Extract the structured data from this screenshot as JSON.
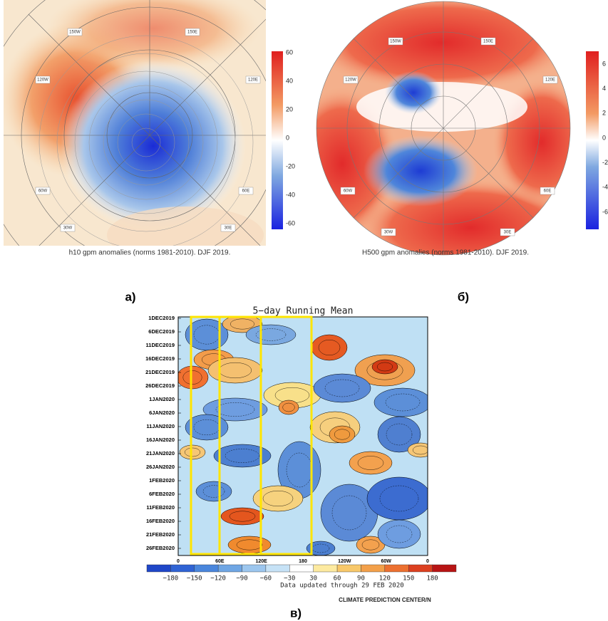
{
  "panel_a": {
    "caption": "h10 gpm anomalies (norms 1981-2010). DJF 2019.",
    "label": "а)",
    "colorbar_ticks": [
      "60",
      "40",
      "20",
      "0",
      "-20",
      "-40",
      "-60"
    ],
    "map_labels": [
      "150W",
      "150E",
      "120W",
      "120E",
      "60W",
      "60E",
      "30W",
      "30E"
    ]
  },
  "panel_b": {
    "caption": "H500 gpm anomalies (norms 1981-2010). DJF 2019.",
    "label": "б)",
    "colorbar_ticks": [
      "6",
      "4",
      "2",
      "0",
      "-2",
      "-4",
      "-6"
    ],
    "map_labels": [
      "150W",
      "150E",
      "120W",
      "120E",
      "60W",
      "60E",
      "30W",
      "30E"
    ]
  },
  "panel_c": {
    "title": "5−day Running Mean",
    "label": "в)",
    "dates": [
      "1DEC2019",
      "6DEC2019",
      "11DEC2019",
      "16DEC2019",
      "21DEC2019",
      "26DEC2019",
      "1JAN2020",
      "6JAN2020",
      "11JAN2020",
      "16JAN2020",
      "21JAN2020",
      "26JAN2020",
      "1FEB2020",
      "6FEB2020",
      "11FEB2020",
      "16FEB2020",
      "21FEB2020",
      "26FEB2020"
    ],
    "longitudes": [
      "0",
      "60E",
      "120E",
      "180",
      "120W",
      "60W",
      "0"
    ],
    "colorbar_ticks": [
      "−180",
      "−150",
      "−120",
      "−90",
      "−60",
      "−30",
      "30",
      "60",
      "90",
      "120",
      "150",
      "180"
    ],
    "note": "Data updated through 29 FEB 2020",
    "credit": "CLIMATE PREDICTION CENTER/N"
  }
}
